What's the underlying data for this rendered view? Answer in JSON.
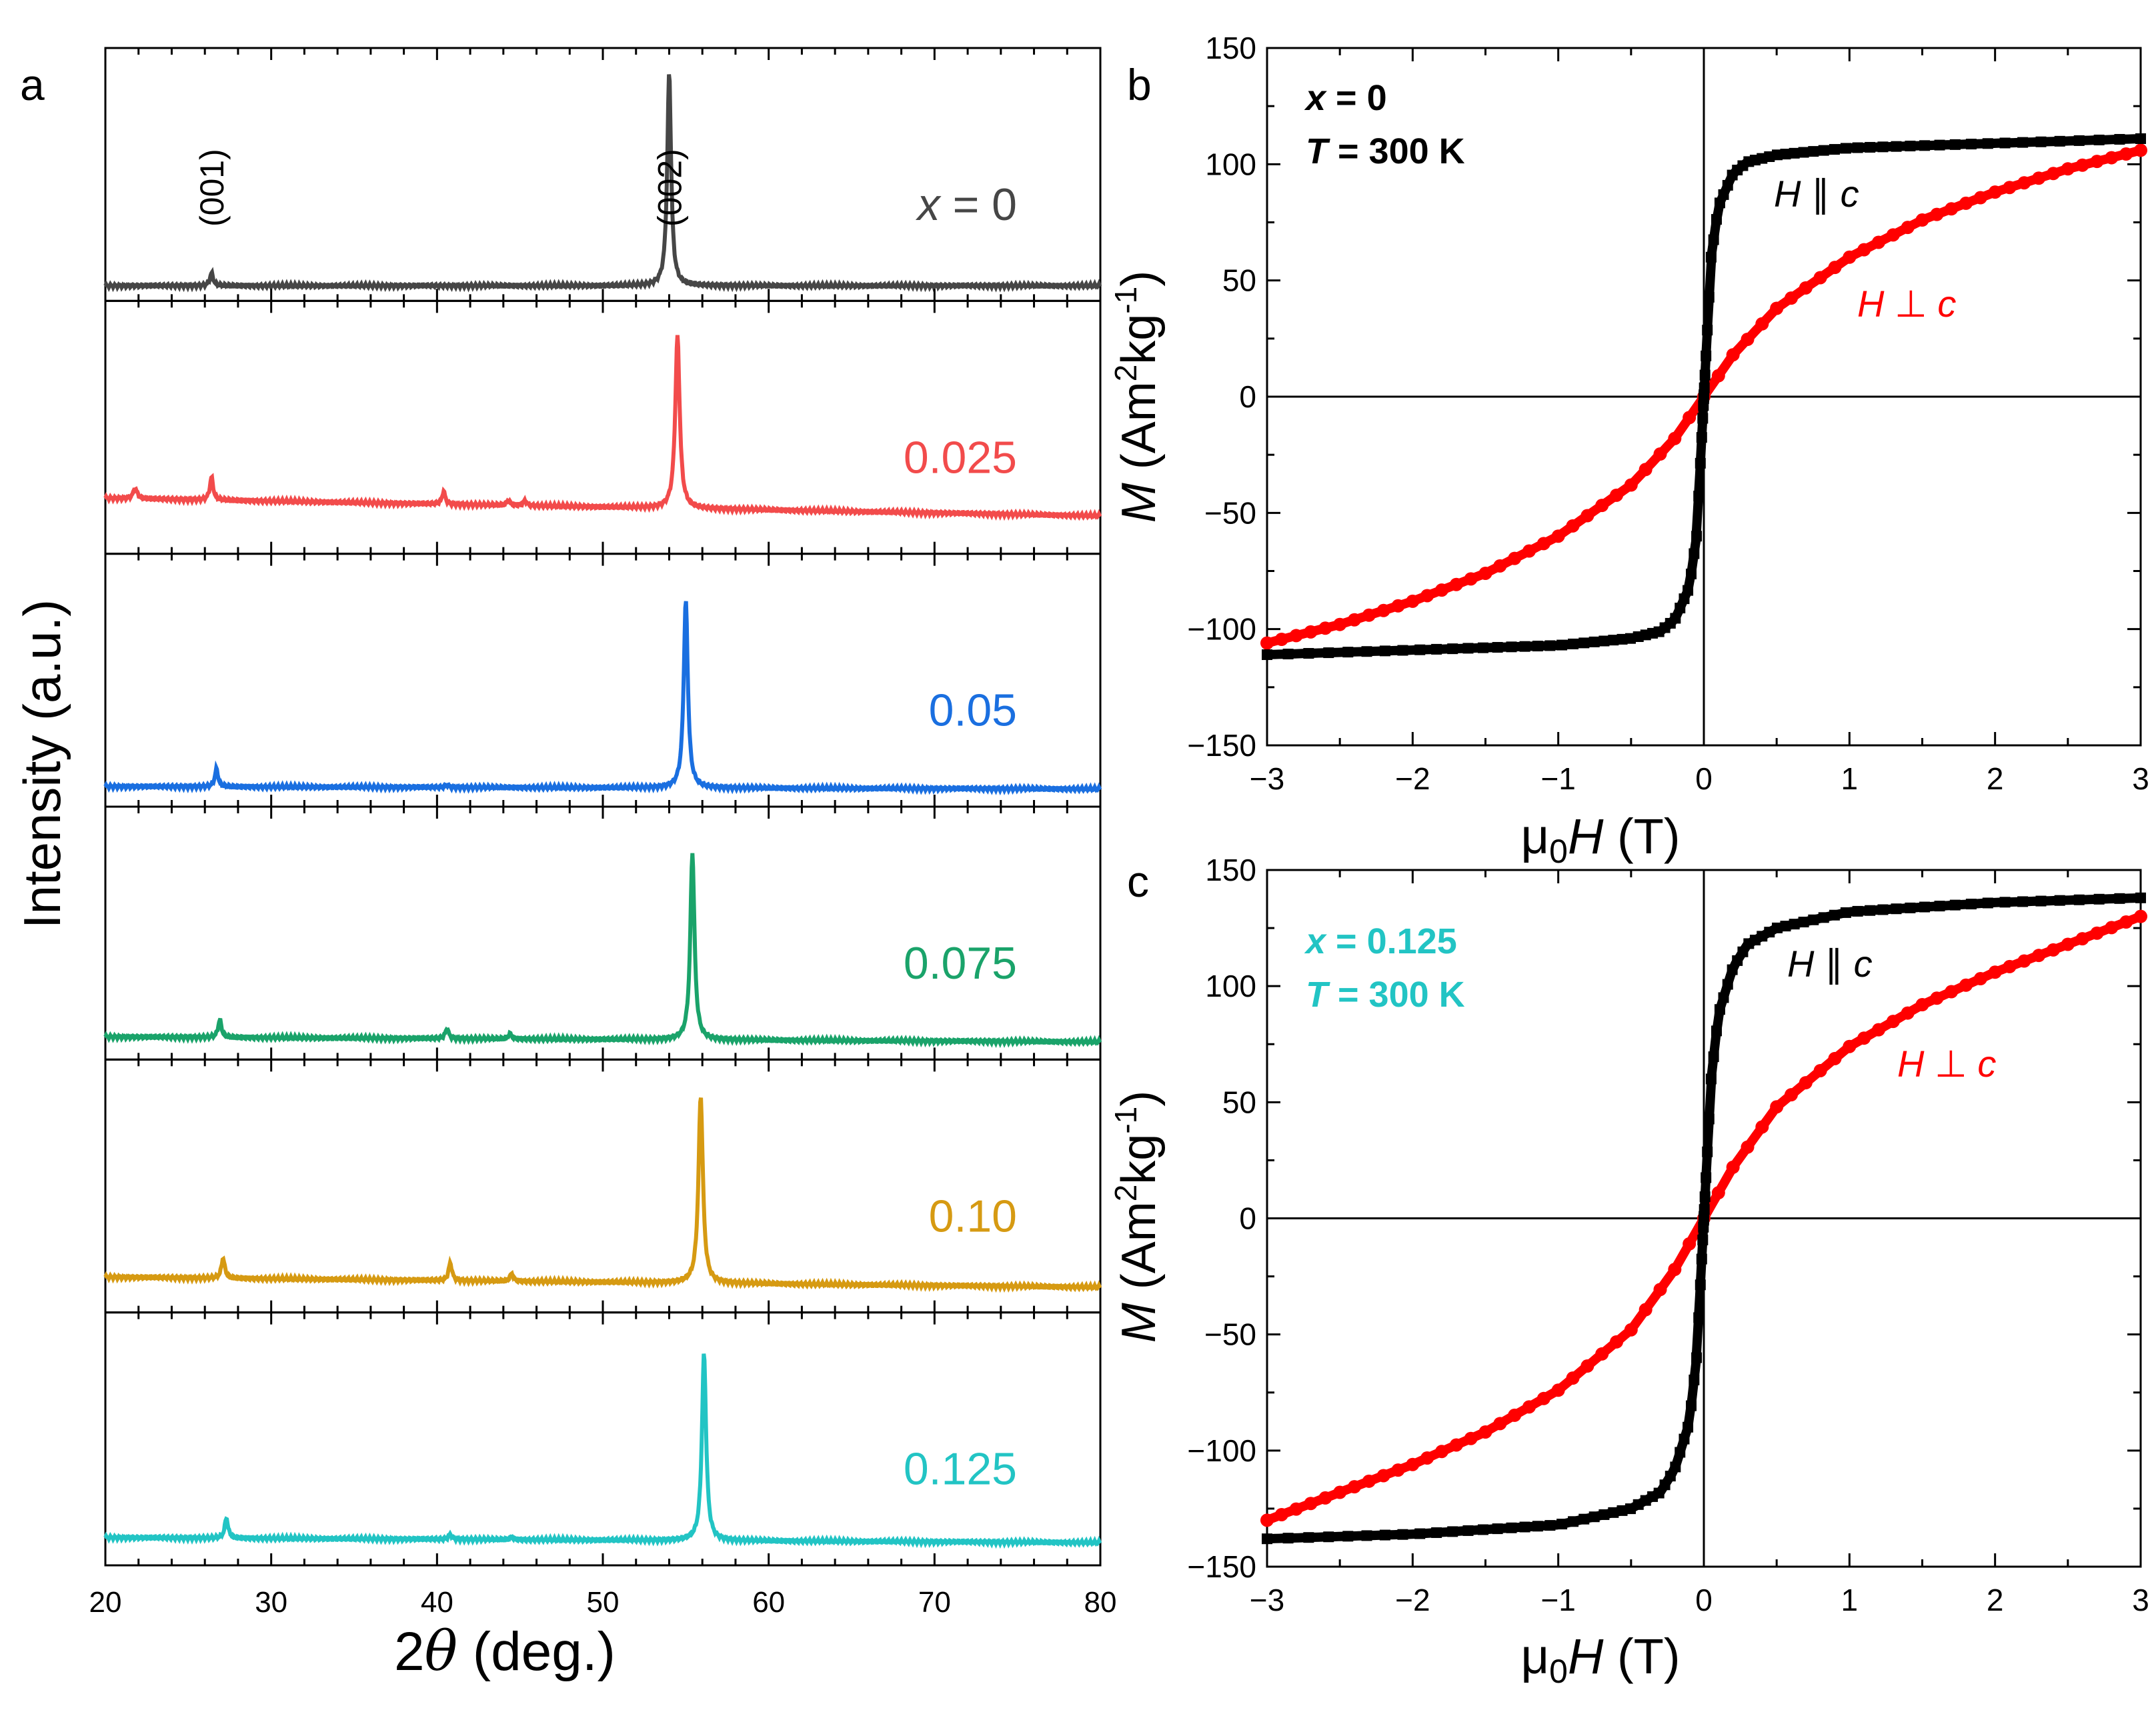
{
  "chart_data": [
    {
      "panel": "a",
      "type": "line",
      "xlabel_prefix": "2",
      "xlabel_symbol": "θ",
      "xlabel_unit": " (deg.)",
      "ylabel": "Intensity (a.u.)",
      "xlim": [
        20,
        80
      ],
      "xticks": [
        "20",
        "30",
        "40",
        "50",
        "60",
        "70",
        "80"
      ],
      "peak_labels": [
        {
          "text": "(001)",
          "x": 26.4
        },
        {
          "text": "(002)",
          "x": 54.0
        }
      ],
      "series": [
        {
          "name": "0",
          "name_prefix": "x",
          "name_eq": " = ",
          "color": "#464646",
          "baseline": 0.06,
          "peaks": [
            {
              "x": 26.4,
              "h": 0.05,
              "w": 0.12
            },
            {
              "x": 54.0,
              "h": 0.84,
              "w": 0.14
            }
          ]
        },
        {
          "name": "0.025",
          "color": "#f24b4b",
          "baseline": 0.15,
          "tilt": 0.07,
          "peaks": [
            {
              "x": 21.8,
              "h": 0.04,
              "w": 0.15
            },
            {
              "x": 26.4,
              "h": 0.09,
              "w": 0.12
            },
            {
              "x": 40.4,
              "h": 0.05,
              "w": 0.12
            },
            {
              "x": 44.3,
              "h": 0.02,
              "w": 0.12
            },
            {
              "x": 45.3,
              "h": 0.02,
              "w": 0.12
            },
            {
              "x": 54.5,
              "h": 0.68,
              "w": 0.16
            }
          ]
        },
        {
          "name": "0.05",
          "color": "#1a6fe0",
          "baseline": 0.07,
          "tilt": 0.01,
          "peaks": [
            {
              "x": 26.7,
              "h": 0.07,
              "w": 0.12
            },
            {
              "x": 40.6,
              "h": 0.01,
              "w": 0.12
            },
            {
              "x": 55.0,
              "h": 0.74,
              "w": 0.15
            }
          ]
        },
        {
          "name": "0.075",
          "color": "#1aa36a",
          "baseline": 0.07,
          "tilt": 0.02,
          "peaks": [
            {
              "x": 26.9,
              "h": 0.07,
              "w": 0.12
            },
            {
              "x": 40.6,
              "h": 0.04,
              "w": 0.12
            },
            {
              "x": 44.4,
              "h": 0.02,
              "w": 0.12
            },
            {
              "x": 55.4,
              "h": 0.74,
              "w": 0.15
            }
          ]
        },
        {
          "name": "0.10",
          "color": "#d69a12",
          "baseline": 0.1,
          "tilt": 0.04,
          "peaks": [
            {
              "x": 27.1,
              "h": 0.08,
              "w": 0.12
            },
            {
              "x": 40.8,
              "h": 0.07,
              "w": 0.12
            },
            {
              "x": 44.5,
              "h": 0.03,
              "w": 0.12
            },
            {
              "x": 55.9,
              "h": 0.74,
              "w": 0.16
            }
          ]
        },
        {
          "name": "0.125",
          "color": "#22c4c4",
          "baseline": 0.09,
          "tilt": 0.02,
          "peaks": [
            {
              "x": 27.3,
              "h": 0.08,
              "w": 0.12
            },
            {
              "x": 40.8,
              "h": 0.02,
              "w": 0.12
            },
            {
              "x": 44.5,
              "h": 0.01,
              "w": 0.12
            },
            {
              "x": 56.1,
              "h": 0.74,
              "w": 0.15
            }
          ]
        }
      ]
    },
    {
      "panel": "b",
      "type": "scatter",
      "xlim": [
        -3,
        3
      ],
      "ylim": [
        -150,
        150
      ],
      "xticks": [
        "−3",
        "−2",
        "−1",
        "0",
        "1",
        "2",
        "3"
      ],
      "yticks": [
        "−150",
        "−100",
        "−50",
        "0",
        "50",
        "100",
        "150"
      ],
      "xlabel_mu": "μ",
      "xlabel_sub": "0",
      "xlabel_var": "H",
      "xlabel_unit": " (T)",
      "ylabel_var": "M",
      "ylabel_unit_a": " (Am",
      "ylabel_unit_sup1": "2",
      "ylabel_unit_b": "kg",
      "ylabel_unit_sup2": "-1",
      "ylabel_unit_c": ")",
      "annotation_line1": {
        "var": "x",
        "eq": " = 0"
      },
      "annotation_line2": {
        "var": "T",
        "eq": " = 300 K"
      },
      "annotation_color": "#000000",
      "series": [
        {
          "name_var1": "H",
          "name_sym": " ∥ ",
          "name_var2": "c",
          "color": "#000000",
          "x": [
            -3,
            -2,
            -1,
            -0.5,
            -0.3,
            -0.2,
            -0.1,
            -0.05,
            0,
            0.05,
            0.1,
            0.2,
            0.3,
            0.5,
            1,
            2,
            3
          ],
          "y": [
            -111,
            -109,
            -107,
            -104,
            -101,
            -96,
            -82,
            -60,
            0,
            60,
            82,
            96,
            101,
            104,
            107,
            109,
            111
          ]
        },
        {
          "name_var1": "H",
          "name_sym": " ⊥ ",
          "name_var2": "c",
          "color": "#ff0000",
          "x": [
            -3,
            -2.5,
            -2,
            -1.5,
            -1,
            -0.5,
            -0.2,
            0,
            0.2,
            0.5,
            1,
            1.5,
            2,
            2.5,
            3
          ],
          "y": [
            -106,
            -98,
            -88,
            -76,
            -60,
            -38,
            -18,
            0,
            18,
            38,
            60,
            76,
            88,
            98,
            106
          ]
        }
      ]
    },
    {
      "panel": "c",
      "type": "scatter",
      "xlim": [
        -3,
        3
      ],
      "ylim": [
        -150,
        150
      ],
      "xticks": [
        "−3",
        "−2",
        "−1",
        "0",
        "1",
        "2",
        "3"
      ],
      "yticks": [
        "−150",
        "−100",
        "−50",
        "0",
        "50",
        "100",
        "150"
      ],
      "xlabel_mu": "μ",
      "xlabel_sub": "0",
      "xlabel_var": "H",
      "xlabel_unit": " (T)",
      "ylabel_var": "M",
      "ylabel_unit_a": " (Am",
      "ylabel_unit_sup1": "2",
      "ylabel_unit_b": "kg",
      "ylabel_unit_sup2": "-1",
      "ylabel_unit_c": ")",
      "annotation_line1": {
        "var": "x",
        "eq": " = 0.125"
      },
      "annotation_line2": {
        "var": "T",
        "eq": " = 300 K"
      },
      "annotation_color": "#22c4c4",
      "series": [
        {
          "name_var1": "H",
          "name_sym": " ∥ ",
          "name_var2": "c",
          "color": "#000000",
          "x": [
            -3,
            -2,
            -1,
            -0.5,
            -0.3,
            -0.2,
            -0.1,
            -0.05,
            0,
            0.05,
            0.1,
            0.2,
            0.3,
            0.5,
            1,
            2,
            3
          ],
          "y": [
            -138,
            -136,
            -132,
            -125,
            -118,
            -108,
            -88,
            -60,
            0,
            60,
            88,
            108,
            118,
            125,
            132,
            136,
            138
          ]
        },
        {
          "name_var1": "H",
          "name_sym": " ⊥ ",
          "name_var2": "c",
          "color": "#ff0000",
          "x": [
            -3,
            -2.5,
            -2,
            -1.5,
            -1,
            -0.5,
            -0.2,
            0,
            0.2,
            0.5,
            1,
            1.5,
            2,
            2.5,
            3
          ],
          "y": [
            -130,
            -118,
            -106,
            -92,
            -74,
            -48,
            -22,
            0,
            22,
            48,
            74,
            92,
            106,
            118,
            130
          ]
        }
      ]
    }
  ],
  "panel_letters": [
    "a",
    "b",
    "c"
  ]
}
